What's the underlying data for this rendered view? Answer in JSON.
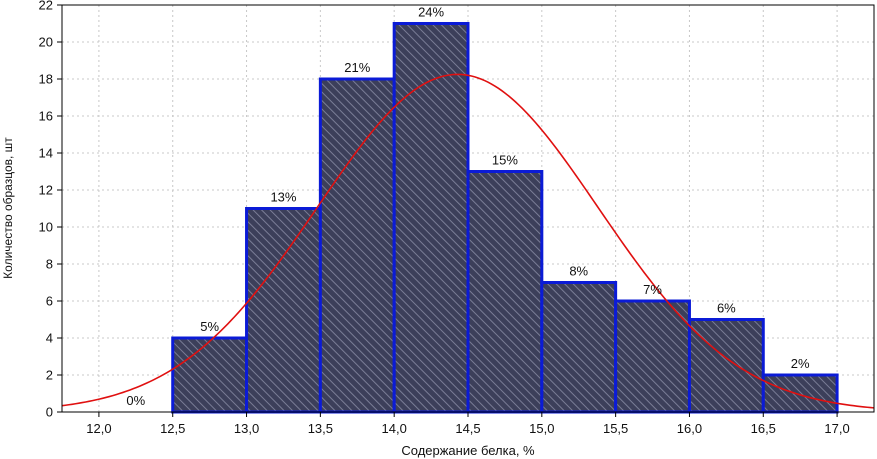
{
  "chart_data": {
    "type": "bar",
    "title": "",
    "xlabel": "Содержание белка, %",
    "ylabel": "Количество образцов, шт",
    "xlim": [
      11.75,
      17.25
    ],
    "ylim": [
      0,
      22
    ],
    "x_ticks": [
      12.0,
      12.5,
      13.0,
      13.5,
      14.0,
      14.5,
      15.0,
      15.5,
      16.0,
      16.5,
      17.0
    ],
    "x_tick_labels": [
      "12,0",
      "12,5",
      "13,0",
      "13,5",
      "14,0",
      "14,5",
      "15,0",
      "15,5",
      "16,0",
      "16,5",
      "17,0"
    ],
    "y_ticks": [
      0,
      2,
      4,
      6,
      8,
      10,
      12,
      14,
      16,
      18,
      20,
      22
    ],
    "y_tick_labels": [
      "0",
      "2",
      "4",
      "6",
      "8",
      "10",
      "12",
      "14",
      "16",
      "18",
      "20",
      "22"
    ],
    "grid": true,
    "legend": "none",
    "bins": [
      {
        "from": 12.0,
        "to": 12.5,
        "count": 0,
        "label": "0%"
      },
      {
        "from": 12.5,
        "to": 13.0,
        "count": 4,
        "label": "5%"
      },
      {
        "from": 13.0,
        "to": 13.5,
        "count": 11,
        "label": "13%"
      },
      {
        "from": 13.5,
        "to": 14.0,
        "count": 18,
        "label": "21%"
      },
      {
        "from": 14.0,
        "to": 14.5,
        "count": 21,
        "label": "24%"
      },
      {
        "from": 14.5,
        "to": 15.0,
        "count": 13,
        "label": "15%"
      },
      {
        "from": 15.0,
        "to": 15.5,
        "count": 7,
        "label": "8%"
      },
      {
        "from": 15.5,
        "to": 16.0,
        "count": 6,
        "label": "7%"
      },
      {
        "from": 16.0,
        "to": 16.5,
        "count": 5,
        "label": "6%"
      },
      {
        "from": 16.5,
        "to": 17.0,
        "count": 2,
        "label": "2%"
      }
    ],
    "fit_curve": {
      "type": "normal",
      "mean": 14.43,
      "std": 0.95,
      "peak": 18.25,
      "x_range": [
        11.75,
        17.25
      ]
    },
    "colors": {
      "bar_fill": "#3c3f5a",
      "bar_hatch": "#7a7d96",
      "bar_edge": "#0b1bd6",
      "curve": "#e01010",
      "grid": "#c8c8c8",
      "axis": "#000000"
    }
  }
}
